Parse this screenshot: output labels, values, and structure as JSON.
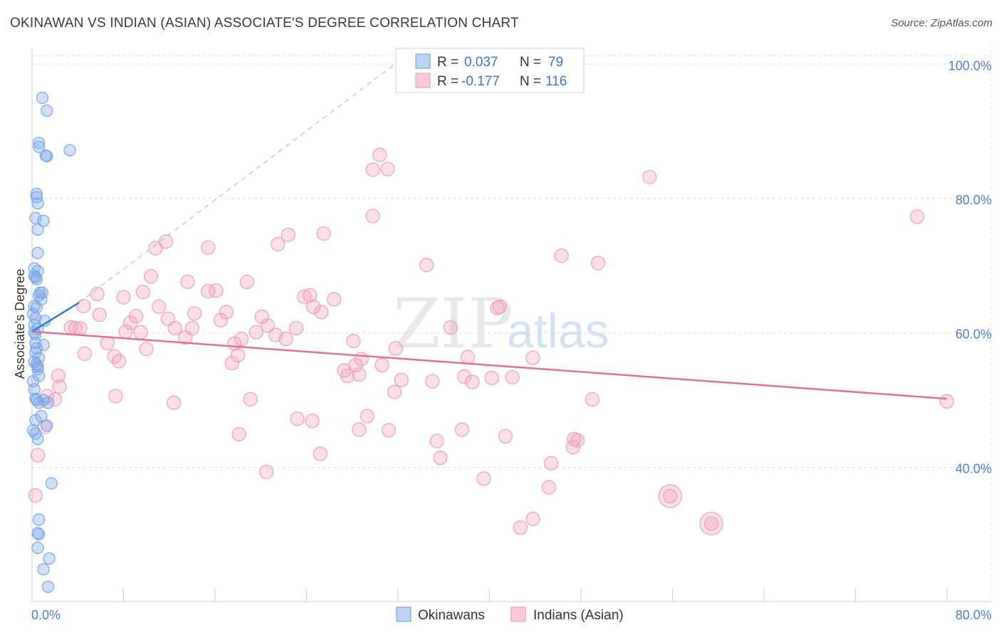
{
  "title": "OKINAWAN VS INDIAN (ASIAN) ASSOCIATE'S DEGREE CORRELATION CHART",
  "source": "Source: ZipAtlas.com",
  "watermark": {
    "zip": "ZIP",
    "atlas": "atlas"
  },
  "colors": {
    "blue": "#7aa7e8",
    "blue_line": "#3a78d6",
    "pink": "#f0a0bc",
    "pink_line": "#e0709a",
    "tick_text": "#4a7fd4"
  },
  "chart_data": {
    "type": "scatter",
    "title": "OKINAWAN VS INDIAN (ASIAN) ASSOCIATE'S DEGREE CORRELATION CHART",
    "xlabel": "",
    "ylabel": "Associate's Degree",
    "xlim": [
      0,
      80
    ],
    "ylim": [
      20,
      103
    ],
    "x_tick_labels": [
      {
        "value": 0,
        "label": "0.0%"
      },
      {
        "value": 80,
        "label": "80.0%"
      }
    ],
    "y_tick_labels": [
      {
        "value": 40,
        "label": "40.0%"
      },
      {
        "value": 60,
        "label": "60.0%"
      },
      {
        "value": 80,
        "label": "80.0%"
      },
      {
        "value": 100,
        "label": "100.0%"
      }
    ],
    "legend": [
      {
        "series": "Okinawans",
        "r_label": "R =",
        "r": "0.037",
        "n_label": "N =",
        "n": "79"
      },
      {
        "series": "Indians (Asian)",
        "r_label": "R =",
        "r": "-0.177",
        "n_label": "N =",
        "n": "116"
      }
    ],
    "series": [
      {
        "name": "Okinawans",
        "trend": {
          "x": [
            0,
            4.1
          ],
          "y": [
            60.2,
            64.5
          ]
        },
        "trend_extension": {
          "x": [
            4.1,
            32.5
          ],
          "y": [
            64.5,
            101.0
          ]
        },
        "points": [
          [
            0.9,
            95.0
          ],
          [
            1.3,
            93.1
          ],
          [
            0.6,
            88.3
          ],
          [
            0.6,
            87.7
          ],
          [
            1.2,
            86.4
          ],
          [
            1.3,
            86.3
          ],
          [
            3.3,
            87.2
          ],
          [
            0.4,
            80.7
          ],
          [
            0.4,
            80.2
          ],
          [
            0.5,
            79.3
          ],
          [
            0.3,
            77.1
          ],
          [
            1.0,
            76.7
          ],
          [
            0.5,
            75.4
          ],
          [
            0.5,
            71.9
          ],
          [
            0.2,
            69.6
          ],
          [
            0.5,
            69.2
          ],
          [
            0.2,
            68.5
          ],
          [
            0.3,
            68.3
          ],
          [
            0.4,
            68.0
          ],
          [
            0.7,
            66.0
          ],
          [
            0.9,
            66.0
          ],
          [
            0.6,
            65.6
          ],
          [
            0.8,
            65.0
          ],
          [
            0.2,
            64.0
          ],
          [
            0.4,
            63.8
          ],
          [
            0.1,
            62.8
          ],
          [
            0.3,
            62.2
          ],
          [
            1.1,
            61.8
          ],
          [
            0.2,
            61.2
          ],
          [
            0.5,
            60.6
          ],
          [
            0.2,
            60.1
          ],
          [
            0.3,
            59.8
          ],
          [
            0.3,
            58.5
          ],
          [
            1.0,
            58.2
          ],
          [
            0.4,
            57.7
          ],
          [
            0.3,
            57.1
          ],
          [
            0.6,
            56.3
          ],
          [
            0.2,
            55.7
          ],
          [
            0.4,
            55.3
          ],
          [
            0.5,
            55.0
          ],
          [
            0.5,
            54.6
          ],
          [
            0.6,
            53.6
          ],
          [
            0.1,
            52.8
          ],
          [
            0.2,
            51.6
          ],
          [
            0.3,
            50.2
          ],
          [
            0.4,
            50.0
          ],
          [
            0.6,
            49.6
          ],
          [
            1.0,
            50.0
          ],
          [
            1.4,
            49.6
          ],
          [
            0.8,
            47.6
          ],
          [
            0.3,
            47.0
          ],
          [
            1.3,
            46.2
          ],
          [
            0.1,
            45.5
          ],
          [
            0.3,
            45.0
          ],
          [
            0.5,
            44.2
          ],
          [
            1.7,
            37.6
          ],
          [
            0.6,
            32.2
          ],
          [
            0.5,
            30.2
          ],
          [
            0.6,
            30.0
          ],
          [
            0.5,
            28.0
          ],
          [
            1.5,
            26.4
          ],
          [
            1.0,
            24.8
          ],
          [
            1.4,
            22.2
          ]
        ]
      },
      {
        "name": "Indians (Asian)",
        "trend": {
          "x": [
            0,
            80
          ],
          "y": [
            60.2,
            50.2
          ]
        },
        "points": [
          [
            30.4,
            86.5
          ],
          [
            29.8,
            84.3
          ],
          [
            31.1,
            84.4
          ],
          [
            54.0,
            83.2
          ],
          [
            29.8,
            77.4
          ],
          [
            77.4,
            77.3
          ],
          [
            11.7,
            73.6
          ],
          [
            10.8,
            72.6
          ],
          [
            15.4,
            72.7
          ],
          [
            22.4,
            74.6
          ],
          [
            25.5,
            74.8
          ],
          [
            21.5,
            73.2
          ],
          [
            46.3,
            71.5
          ],
          [
            49.5,
            70.4
          ],
          [
            34.5,
            70.1
          ],
          [
            10.4,
            68.4
          ],
          [
            13.6,
            67.6
          ],
          [
            18.8,
            67.6
          ],
          [
            15.4,
            66.2
          ],
          [
            16.1,
            66.3
          ],
          [
            9.7,
            66.1
          ],
          [
            5.7,
            65.8
          ],
          [
            8.0,
            65.3
          ],
          [
            23.8,
            65.4
          ],
          [
            24.3,
            65.6
          ],
          [
            26.4,
            65.0
          ],
          [
            4.5,
            64.0
          ],
          [
            11.1,
            63.9
          ],
          [
            24.6,
            63.9
          ],
          [
            40.7,
            63.7
          ],
          [
            40.9,
            63.9
          ],
          [
            25.3,
            63.1
          ],
          [
            5.9,
            62.7
          ],
          [
            17.0,
            63.1
          ],
          [
            14.2,
            62.9
          ],
          [
            9.1,
            62.5
          ],
          [
            20.1,
            62.4
          ],
          [
            11.9,
            62.1
          ],
          [
            16.5,
            61.9
          ],
          [
            8.6,
            61.5
          ],
          [
            20.6,
            61.1
          ],
          [
            3.4,
            60.8
          ],
          [
            3.8,
            60.7
          ],
          [
            4.2,
            60.7
          ],
          [
            12.5,
            60.7
          ],
          [
            14.0,
            60.7
          ],
          [
            23.1,
            60.7
          ],
          [
            36.6,
            60.8
          ],
          [
            8.2,
            60.2
          ],
          [
            9.5,
            60.1
          ],
          [
            19.6,
            60.1
          ],
          [
            21.3,
            59.7
          ],
          [
            13.4,
            59.3
          ],
          [
            18.3,
            59.1
          ],
          [
            22.2,
            59.1
          ],
          [
            28.1,
            58.8
          ],
          [
            6.6,
            58.5
          ],
          [
            17.7,
            58.4
          ],
          [
            31.8,
            57.7
          ],
          [
            10.0,
            57.6
          ],
          [
            4.6,
            56.9
          ],
          [
            18.0,
            56.7
          ],
          [
            7.2,
            56.5
          ],
          [
            28.8,
            56.1
          ],
          [
            38.1,
            56.4
          ],
          [
            43.8,
            56.3
          ],
          [
            17.5,
            55.5
          ],
          [
            7.6,
            55.8
          ],
          [
            30.6,
            55.2
          ],
          [
            28.3,
            55.2
          ],
          [
            27.3,
            54.4
          ],
          [
            27.6,
            53.6
          ],
          [
            2.3,
            53.6
          ],
          [
            28.6,
            53.8
          ],
          [
            37.8,
            53.5
          ],
          [
            40.2,
            53.3
          ],
          [
            42.0,
            53.4
          ],
          [
            32.3,
            53.0
          ],
          [
            35.0,
            52.8
          ],
          [
            38.5,
            52.7
          ],
          [
            2.4,
            52.0
          ],
          [
            31.7,
            51.2
          ],
          [
            7.3,
            50.6
          ],
          [
            1.3,
            50.6
          ],
          [
            2.0,
            50.1
          ],
          [
            19.1,
            50.1
          ],
          [
            49.0,
            50.1
          ],
          [
            80.0,
            49.8
          ],
          [
            12.4,
            49.6
          ],
          [
            29.3,
            47.6
          ],
          [
            23.2,
            47.2
          ],
          [
            24.5,
            46.9
          ],
          [
            1.1,
            46.0
          ],
          [
            28.6,
            45.6
          ],
          [
            31.2,
            45.5
          ],
          [
            37.6,
            45.6
          ],
          [
            18.1,
            44.9
          ],
          [
            41.4,
            44.6
          ],
          [
            47.7,
            44.0
          ],
          [
            47.3,
            43.0
          ],
          [
            45.4,
            40.6
          ],
          [
            35.4,
            43.9
          ],
          [
            35.7,
            41.4
          ],
          [
            25.2,
            42.0
          ],
          [
            20.5,
            39.3
          ],
          [
            39.5,
            38.3
          ],
          [
            47.4,
            44.2
          ],
          [
            45.2,
            37.0
          ],
          [
            0.5,
            41.8
          ],
          [
            0.3,
            35.8
          ],
          [
            55.8,
            35.7
          ],
          [
            59.4,
            31.6
          ],
          [
            42.7,
            31.0
          ],
          [
            43.8,
            32.3
          ]
        ]
      }
    ],
    "bottom_legend": [
      "Okinawans",
      "Indians (Asian)"
    ]
  }
}
